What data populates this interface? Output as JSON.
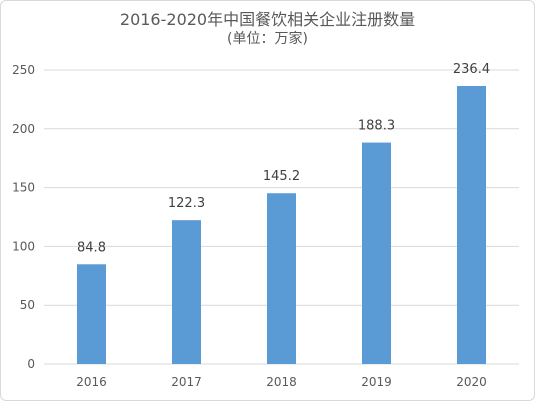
{
  "chart_data": {
    "type": "bar",
    "title": "2016-2020年中国餐饮相关企业注册数量",
    "subtitle": "(单位：万家)",
    "categories": [
      "2016",
      "2017",
      "2018",
      "2019",
      "2020"
    ],
    "values": [
      84.8,
      122.3,
      145.2,
      188.3,
      236.4
    ],
    "data_labels": [
      "84.8",
      "122.3",
      "145.2",
      "188.3",
      "236.4"
    ],
    "y_ticks": [
      "0",
      "50",
      "100",
      "150",
      "200",
      "250"
    ],
    "ylim": [
      0,
      250
    ],
    "grid": true,
    "legend": "none",
    "bar_color": "#5b9bd5",
    "grid_color": "#d9d9d9"
  }
}
